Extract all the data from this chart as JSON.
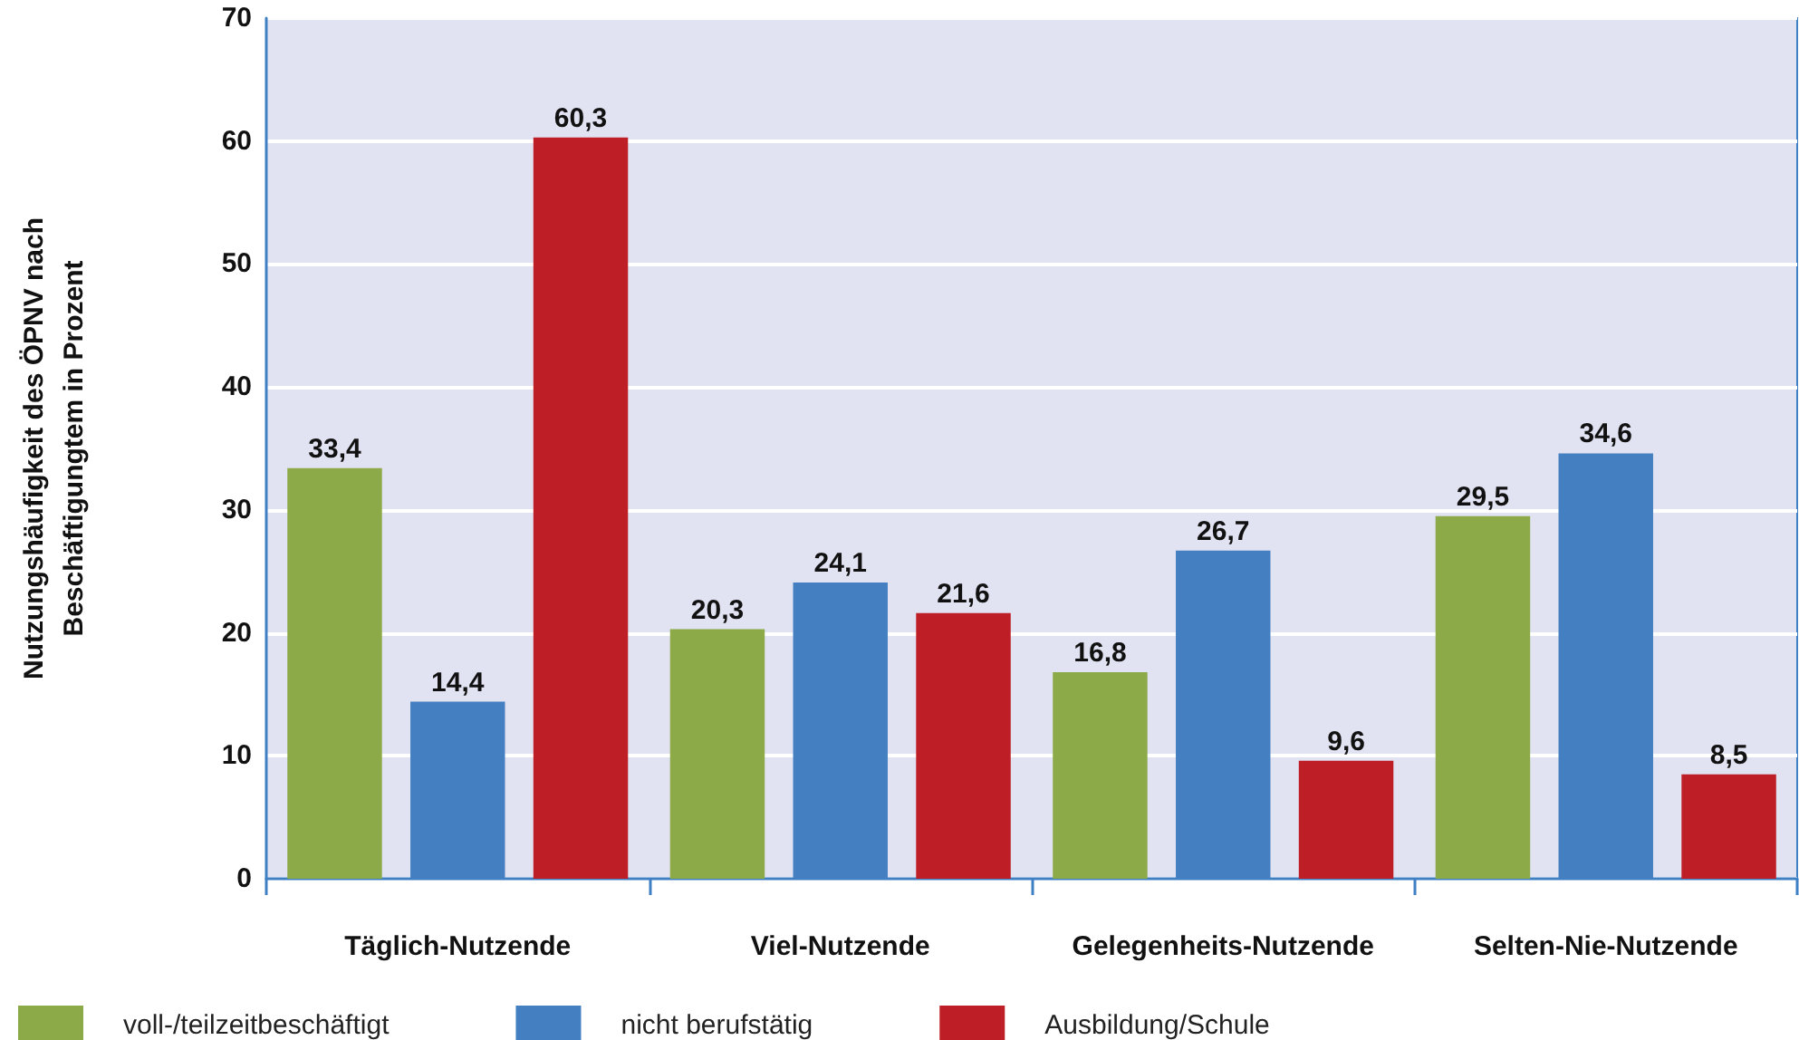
{
  "chart_data": {
    "type": "bar",
    "ylabel": "Nutzungshäufigkeit des ÖPNV nach\nBeschäftigungtem in Prozent",
    "categories": [
      "Täglich-Nutzende",
      "Viel-Nutzende",
      "Gelegenheits-Nutzende",
      "Selten-Nie-Nutzende"
    ],
    "series": [
      {
        "name": "voll-/teilzeitbeschäftigt",
        "color": "#8caa47",
        "values": [
          33.4,
          20.3,
          16.8,
          29.5
        ],
        "value_labels": [
          "33,4",
          "20,3",
          "16,8",
          "29,5"
        ]
      },
      {
        "name": "nicht berufstätig",
        "color": "#447fc2",
        "values": [
          14.4,
          24.1,
          26.7,
          34.6
        ],
        "value_labels": [
          "14,4",
          "24,1",
          "26,7",
          "34,6"
        ]
      },
      {
        "name": "Ausbildung/Schule",
        "color": "#be1e25",
        "values": [
          60.3,
          21.6,
          9.6,
          8.5
        ],
        "value_labels": [
          "60,3",
          "21,6",
          "9,6",
          "8,5"
        ]
      }
    ],
    "ylim": [
      0,
      70
    ],
    "yticks": [
      0,
      10,
      20,
      30,
      40,
      50,
      60,
      70
    ],
    "grid": "y",
    "legend": "bottom"
  }
}
